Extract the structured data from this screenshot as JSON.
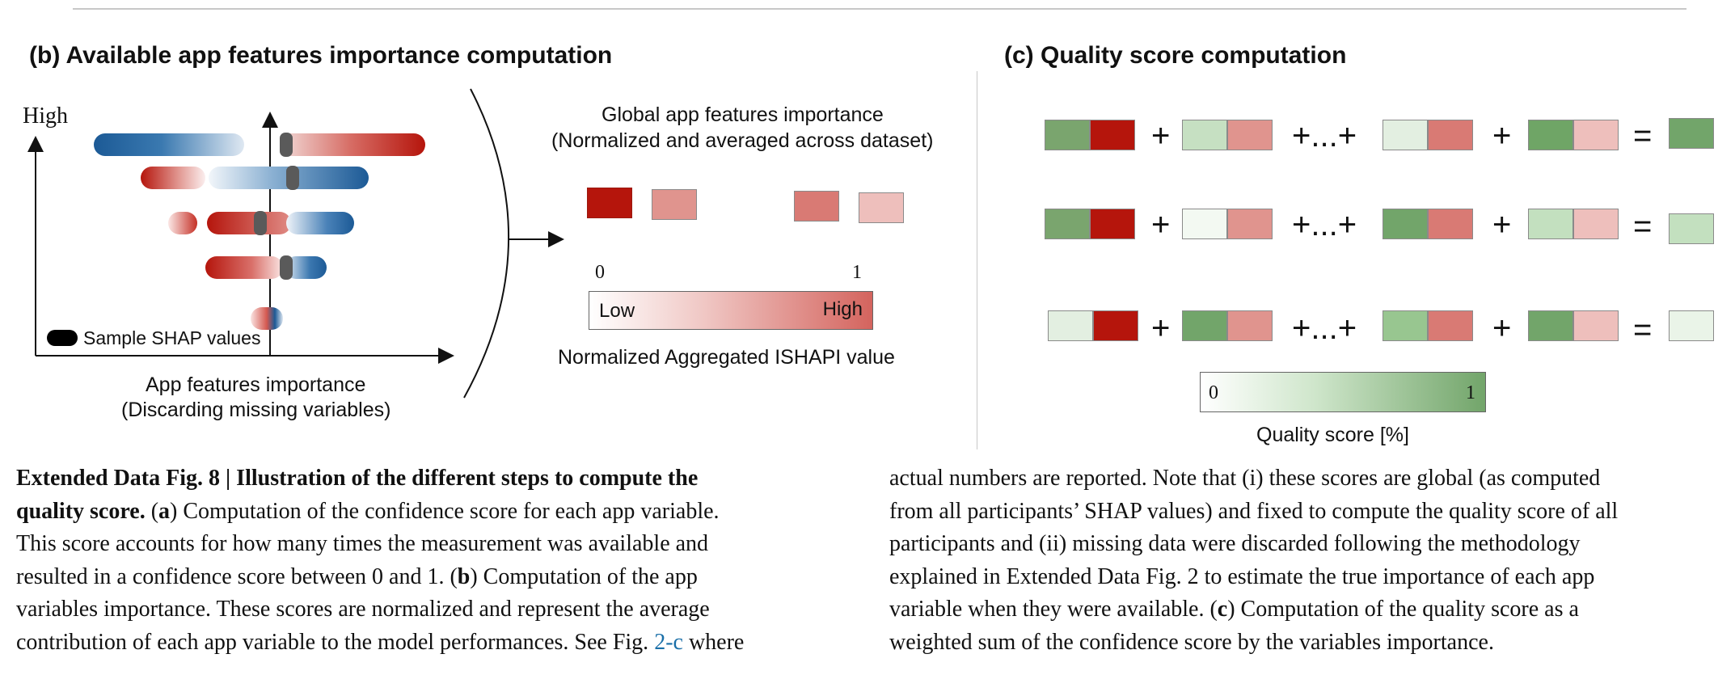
{
  "panel_b": {
    "title": "(b) Available app features importance computation",
    "y_label": "High",
    "legend_label": "Sample SHAP values",
    "x_label_line1": "App features importance",
    "x_label_line2": "(Discarding missing variables)",
    "global_line1": "Global app features importance",
    "global_line2": "(Normalized and averaged across dataset)",
    "scale_min": "0",
    "scale_max": "1",
    "scale_low": "Low",
    "scale_high": "High",
    "scale_caption": "Normalized Aggregated ISHAPI value",
    "colors": {
      "red": "#b5150c",
      "blue": "#1c5a96"
    }
  },
  "panel_c": {
    "title": "(c) Quality score computation",
    "plus": "+",
    "dots": "+...+",
    "equals": "=",
    "scale_min": "0",
    "scale_max": "1",
    "scale_caption": "Quality score [%]",
    "colors": {
      "green": "#72a56a",
      "red": "#b5150c"
    }
  },
  "caption": {
    "label": "Extended Data Fig. 8 | Illustration of the different steps to compute the",
    "label2": "quality score.",
    "a_letter": "a",
    "a_text": "Computation of the confidence score for each app variable.",
    "l3": "This score accounts for how many times the measurement was available and",
    "l4a": "resulted in a confidence score between 0 and 1. (",
    "b_letter": "b",
    "l4b": ") Computation of the app",
    "l5": "variables importance. These scores are normalized and represent the average",
    "l6a": "contribution of each app variable to the model performances. See Fig. ",
    "link": "2-c",
    "l6b": " where",
    "r1": "actual numbers are reported. Note that (i) these scores are global (as computed",
    "r2": "from all participants’ SHAP values) and fixed to compute the quality score of all",
    "r3": "participants and (ii) missing data were discarded following the methodology",
    "r4": "explained in Extended Data Fig. 2 to estimate the true importance of each app",
    "r5a": "variable when they were available. (",
    "c_letter": "c",
    "r5b": ") Computation of the quality score as a",
    "r6": "weighted sum of the confidence score by the variables importance."
  }
}
